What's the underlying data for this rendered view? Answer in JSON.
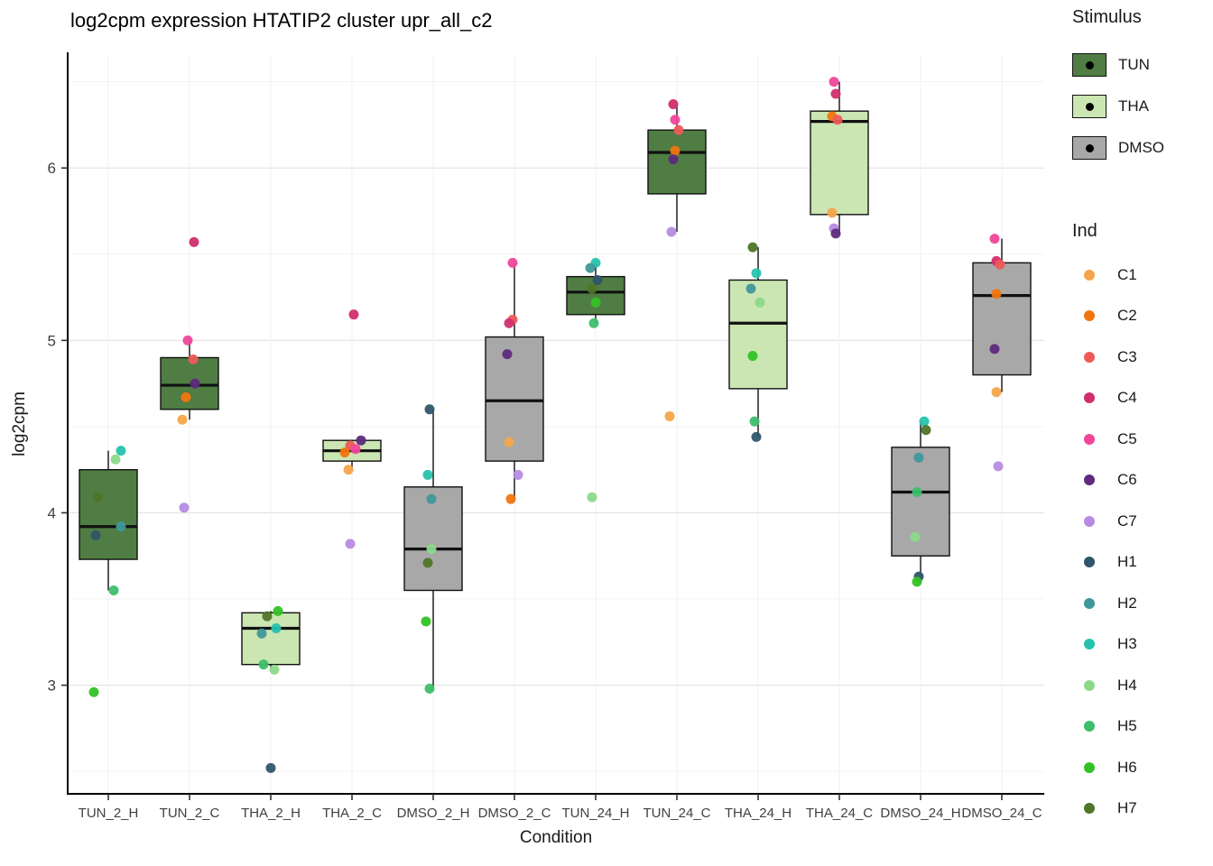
{
  "title": "log2cpm expression HTATIP2 cluster upr_all_c2",
  "axes": {
    "x_label": "Condition",
    "y_label": "log2cpm",
    "y_ticks": [
      3,
      4,
      5,
      6
    ]
  },
  "legend": {
    "stimulus_title": "Stimulus",
    "stimulus": [
      {
        "label": "TUN",
        "color": "#4F7D43"
      },
      {
        "label": "THA",
        "color": "#CBE6B2"
      },
      {
        "label": "DMSO",
        "color": "#A8A8A8"
      }
    ],
    "ind_title": "Ind",
    "ind": [
      {
        "label": "C1",
        "color": "#F5A54A"
      },
      {
        "label": "C2",
        "color": "#F0760F"
      },
      {
        "label": "C3",
        "color": "#EE5A5A"
      },
      {
        "label": "C4",
        "color": "#D12F6E"
      },
      {
        "label": "C5",
        "color": "#F0479B"
      },
      {
        "label": "C6",
        "color": "#5E2B7E"
      },
      {
        "label": "C7",
        "color": "#B78BE3"
      },
      {
        "label": "H1",
        "color": "#2F566B"
      },
      {
        "label": "H2",
        "color": "#3F989A"
      },
      {
        "label": "H3",
        "color": "#27C2AE"
      },
      {
        "label": "H4",
        "color": "#8CD98C"
      },
      {
        "label": "H5",
        "color": "#3DBE6C"
      },
      {
        "label": "H6",
        "color": "#33C225"
      },
      {
        "label": "H7",
        "color": "#4F7528"
      }
    ]
  },
  "chart_data": {
    "type": "boxplot",
    "title": "log2cpm expression HTATIP2 cluster upr_all_c2",
    "xlabel": "Condition",
    "ylabel": "log2cpm",
    "ylim": [
      2.37,
      6.65
    ],
    "grid": true,
    "x_categories": [
      "TUN_2_H",
      "TUN_2_C",
      "THA_2_H",
      "THA_2_C",
      "DMSO_2_H",
      "DMSO_2_C",
      "TUN_24_H",
      "TUN_24_C",
      "THA_24_H",
      "THA_24_C",
      "DMSO_24_H",
      "DMSO_24_C"
    ],
    "boxes": [
      {
        "condition": "TUN_2_H",
        "stimulus": "TUN",
        "q1": 3.73,
        "median": 3.92,
        "q3": 4.25,
        "whisker_low": 3.55,
        "whisker_high": 4.36,
        "points": [
          {
            "ind": "H3",
            "value": 4.36,
            "dx": 14
          },
          {
            "ind": "H4",
            "value": 4.31,
            "dx": 8
          },
          {
            "ind": "H7",
            "value": 4.09,
            "dx": -12
          },
          {
            "ind": "H2",
            "value": 3.92,
            "dx": 14
          },
          {
            "ind": "H1",
            "value": 3.87,
            "dx": -14
          },
          {
            "ind": "H5",
            "value": 3.55,
            "dx": 6
          },
          {
            "ind": "H6",
            "value": 2.96,
            "dx": -16
          }
        ]
      },
      {
        "condition": "TUN_2_C",
        "stimulus": "TUN",
        "q1": 4.6,
        "median": 4.74,
        "q3": 4.9,
        "whisker_low": 4.54,
        "whisker_high": 5.0,
        "points": [
          {
            "ind": "C4",
            "value": 5.57,
            "dx": 5
          },
          {
            "ind": "C5",
            "value": 5.0,
            "dx": -2
          },
          {
            "ind": "C3",
            "value": 4.89,
            "dx": 4
          },
          {
            "ind": "C6",
            "value": 4.75,
            "dx": 6
          },
          {
            "ind": "C2",
            "value": 4.67,
            "dx": -4
          },
          {
            "ind": "C1",
            "value": 4.54,
            "dx": -8
          },
          {
            "ind": "C7",
            "value": 4.03,
            "dx": -6
          }
        ]
      },
      {
        "condition": "THA_2_H",
        "stimulus": "THA",
        "q1": 3.12,
        "median": 3.33,
        "q3": 3.42,
        "whisker_low": 3.09,
        "whisker_high": 3.43,
        "points": [
          {
            "ind": "H6",
            "value": 3.43,
            "dx": 8
          },
          {
            "ind": "H7",
            "value": 3.4,
            "dx": -4
          },
          {
            "ind": "H3",
            "value": 3.33,
            "dx": 6
          },
          {
            "ind": "H2",
            "value": 3.3,
            "dx": -10
          },
          {
            "ind": "H5",
            "value": 3.12,
            "dx": -8
          },
          {
            "ind": "H4",
            "value": 3.09,
            "dx": 4
          },
          {
            "ind": "H1",
            "value": 2.52,
            "dx": 0
          }
        ]
      },
      {
        "condition": "THA_2_C",
        "stimulus": "THA",
        "q1": 4.3,
        "median": 4.36,
        "q3": 4.42,
        "whisker_low": 4.25,
        "whisker_high": 4.42,
        "points": [
          {
            "ind": "C4",
            "value": 5.15,
            "dx": 2
          },
          {
            "ind": "C6",
            "value": 4.42,
            "dx": 10
          },
          {
            "ind": "C3",
            "value": 4.39,
            "dx": -2
          },
          {
            "ind": "C5",
            "value": 4.37,
            "dx": 4
          },
          {
            "ind": "C2",
            "value": 4.35,
            "dx": -8
          },
          {
            "ind": "C1",
            "value": 4.25,
            "dx": -4
          },
          {
            "ind": "C7",
            "value": 3.82,
            "dx": -2
          }
        ]
      },
      {
        "condition": "DMSO_2_H",
        "stimulus": "DMSO",
        "q1": 3.55,
        "median": 3.79,
        "q3": 4.15,
        "whisker_low": 2.98,
        "whisker_high": 4.6,
        "points": [
          {
            "ind": "H1",
            "value": 4.6,
            "dx": -4
          },
          {
            "ind": "H3",
            "value": 4.22,
            "dx": -6
          },
          {
            "ind": "H2",
            "value": 4.08,
            "dx": -2
          },
          {
            "ind": "H4",
            "value": 3.79,
            "dx": -2
          },
          {
            "ind": "H7",
            "value": 3.71,
            "dx": -6
          },
          {
            "ind": "H6",
            "value": 3.37,
            "dx": -8
          },
          {
            "ind": "H5",
            "value": 2.98,
            "dx": -4
          }
        ]
      },
      {
        "condition": "DMSO_2_C",
        "stimulus": "DMSO",
        "q1": 4.3,
        "median": 4.65,
        "q3": 5.02,
        "whisker_low": 4.08,
        "whisker_high": 5.45,
        "points": [
          {
            "ind": "C5",
            "value": 5.45,
            "dx": -2
          },
          {
            "ind": "C3",
            "value": 5.12,
            "dx": -2
          },
          {
            "ind": "C4",
            "value": 5.1,
            "dx": -6
          },
          {
            "ind": "C6",
            "value": 4.92,
            "dx": -8
          },
          {
            "ind": "C1",
            "value": 4.41,
            "dx": -6
          },
          {
            "ind": "C7",
            "value": 4.22,
            "dx": 4
          },
          {
            "ind": "C2",
            "value": 4.08,
            "dx": -4
          }
        ]
      },
      {
        "condition": "TUN_24_H",
        "stimulus": "TUN",
        "q1": 5.15,
        "median": 5.28,
        "q3": 5.37,
        "whisker_low": 5.1,
        "whisker_high": 5.45,
        "points": [
          {
            "ind": "H3",
            "value": 5.45,
            "dx": 0
          },
          {
            "ind": "H2",
            "value": 5.42,
            "dx": -6
          },
          {
            "ind": "H1",
            "value": 5.35,
            "dx": 2
          },
          {
            "ind": "H7",
            "value": 5.3,
            "dx": -4
          },
          {
            "ind": "H6",
            "value": 5.22,
            "dx": 0
          },
          {
            "ind": "H5",
            "value": 5.1,
            "dx": -2
          },
          {
            "ind": "H4",
            "value": 4.09,
            "dx": -4
          }
        ]
      },
      {
        "condition": "TUN_24_C",
        "stimulus": "TUN",
        "q1": 5.85,
        "median": 6.09,
        "q3": 6.22,
        "whisker_low": 5.63,
        "whisker_high": 6.37,
        "points": [
          {
            "ind": "C4",
            "value": 6.37,
            "dx": -4
          },
          {
            "ind": "C5",
            "value": 6.28,
            "dx": -2
          },
          {
            "ind": "C3",
            "value": 6.22,
            "dx": 2
          },
          {
            "ind": "C2",
            "value": 6.1,
            "dx": -2
          },
          {
            "ind": "C6",
            "value": 6.05,
            "dx": -4
          },
          {
            "ind": "C7",
            "value": 5.63,
            "dx": -6
          },
          {
            "ind": "C1",
            "value": 4.56,
            "dx": -8
          }
        ]
      },
      {
        "condition": "THA_24_H",
        "stimulus": "THA",
        "q1": 4.72,
        "median": 5.1,
        "q3": 5.35,
        "whisker_low": 4.44,
        "whisker_high": 5.54,
        "points": [
          {
            "ind": "H7",
            "value": 5.54,
            "dx": -6
          },
          {
            "ind": "H3",
            "value": 5.39,
            "dx": -2
          },
          {
            "ind": "H2",
            "value": 5.3,
            "dx": -8
          },
          {
            "ind": "H4",
            "value": 5.22,
            "dx": 2
          },
          {
            "ind": "H6",
            "value": 4.91,
            "dx": -6
          },
          {
            "ind": "H5",
            "value": 4.53,
            "dx": -4
          },
          {
            "ind": "H1",
            "value": 4.44,
            "dx": -2
          }
        ]
      },
      {
        "condition": "THA_24_C",
        "stimulus": "THA",
        "q1": 5.73,
        "median": 6.27,
        "q3": 6.33,
        "whisker_low": 5.62,
        "whisker_high": 6.5,
        "points": [
          {
            "ind": "C5",
            "value": 6.5,
            "dx": -6
          },
          {
            "ind": "C4",
            "value": 6.43,
            "dx": -4
          },
          {
            "ind": "C2",
            "value": 6.3,
            "dx": -8
          },
          {
            "ind": "C3",
            "value": 6.28,
            "dx": -2
          },
          {
            "ind": "C1",
            "value": 5.74,
            "dx": -8
          },
          {
            "ind": "C7",
            "value": 5.65,
            "dx": -6
          },
          {
            "ind": "C6",
            "value": 5.62,
            "dx": -4
          }
        ]
      },
      {
        "condition": "DMSO_24_H",
        "stimulus": "DMSO",
        "q1": 3.75,
        "median": 4.12,
        "q3": 4.38,
        "whisker_low": 3.6,
        "whisker_high": 4.53,
        "points": [
          {
            "ind": "H3",
            "value": 4.53,
            "dx": 4
          },
          {
            "ind": "H7",
            "value": 4.48,
            "dx": 6
          },
          {
            "ind": "H2",
            "value": 4.32,
            "dx": -2
          },
          {
            "ind": "H5",
            "value": 4.12,
            "dx": -4
          },
          {
            "ind": "H4",
            "value": 3.86,
            "dx": -6
          },
          {
            "ind": "H1",
            "value": 3.63,
            "dx": -2
          },
          {
            "ind": "H6",
            "value": 3.6,
            "dx": -4
          }
        ]
      },
      {
        "condition": "DMSO_24_C",
        "stimulus": "DMSO",
        "q1": 4.8,
        "median": 5.26,
        "q3": 5.45,
        "whisker_low": 4.7,
        "whisker_high": 5.59,
        "points": [
          {
            "ind": "C5",
            "value": 5.59,
            "dx": -8
          },
          {
            "ind": "C4",
            "value": 5.46,
            "dx": -6
          },
          {
            "ind": "C3",
            "value": 5.44,
            "dx": -2
          },
          {
            "ind": "C2",
            "value": 5.27,
            "dx": -6
          },
          {
            "ind": "C6",
            "value": 4.95,
            "dx": -8
          },
          {
            "ind": "C1",
            "value": 4.7,
            "dx": -6
          },
          {
            "ind": "C7",
            "value": 4.27,
            "dx": -4
          }
        ]
      }
    ]
  }
}
